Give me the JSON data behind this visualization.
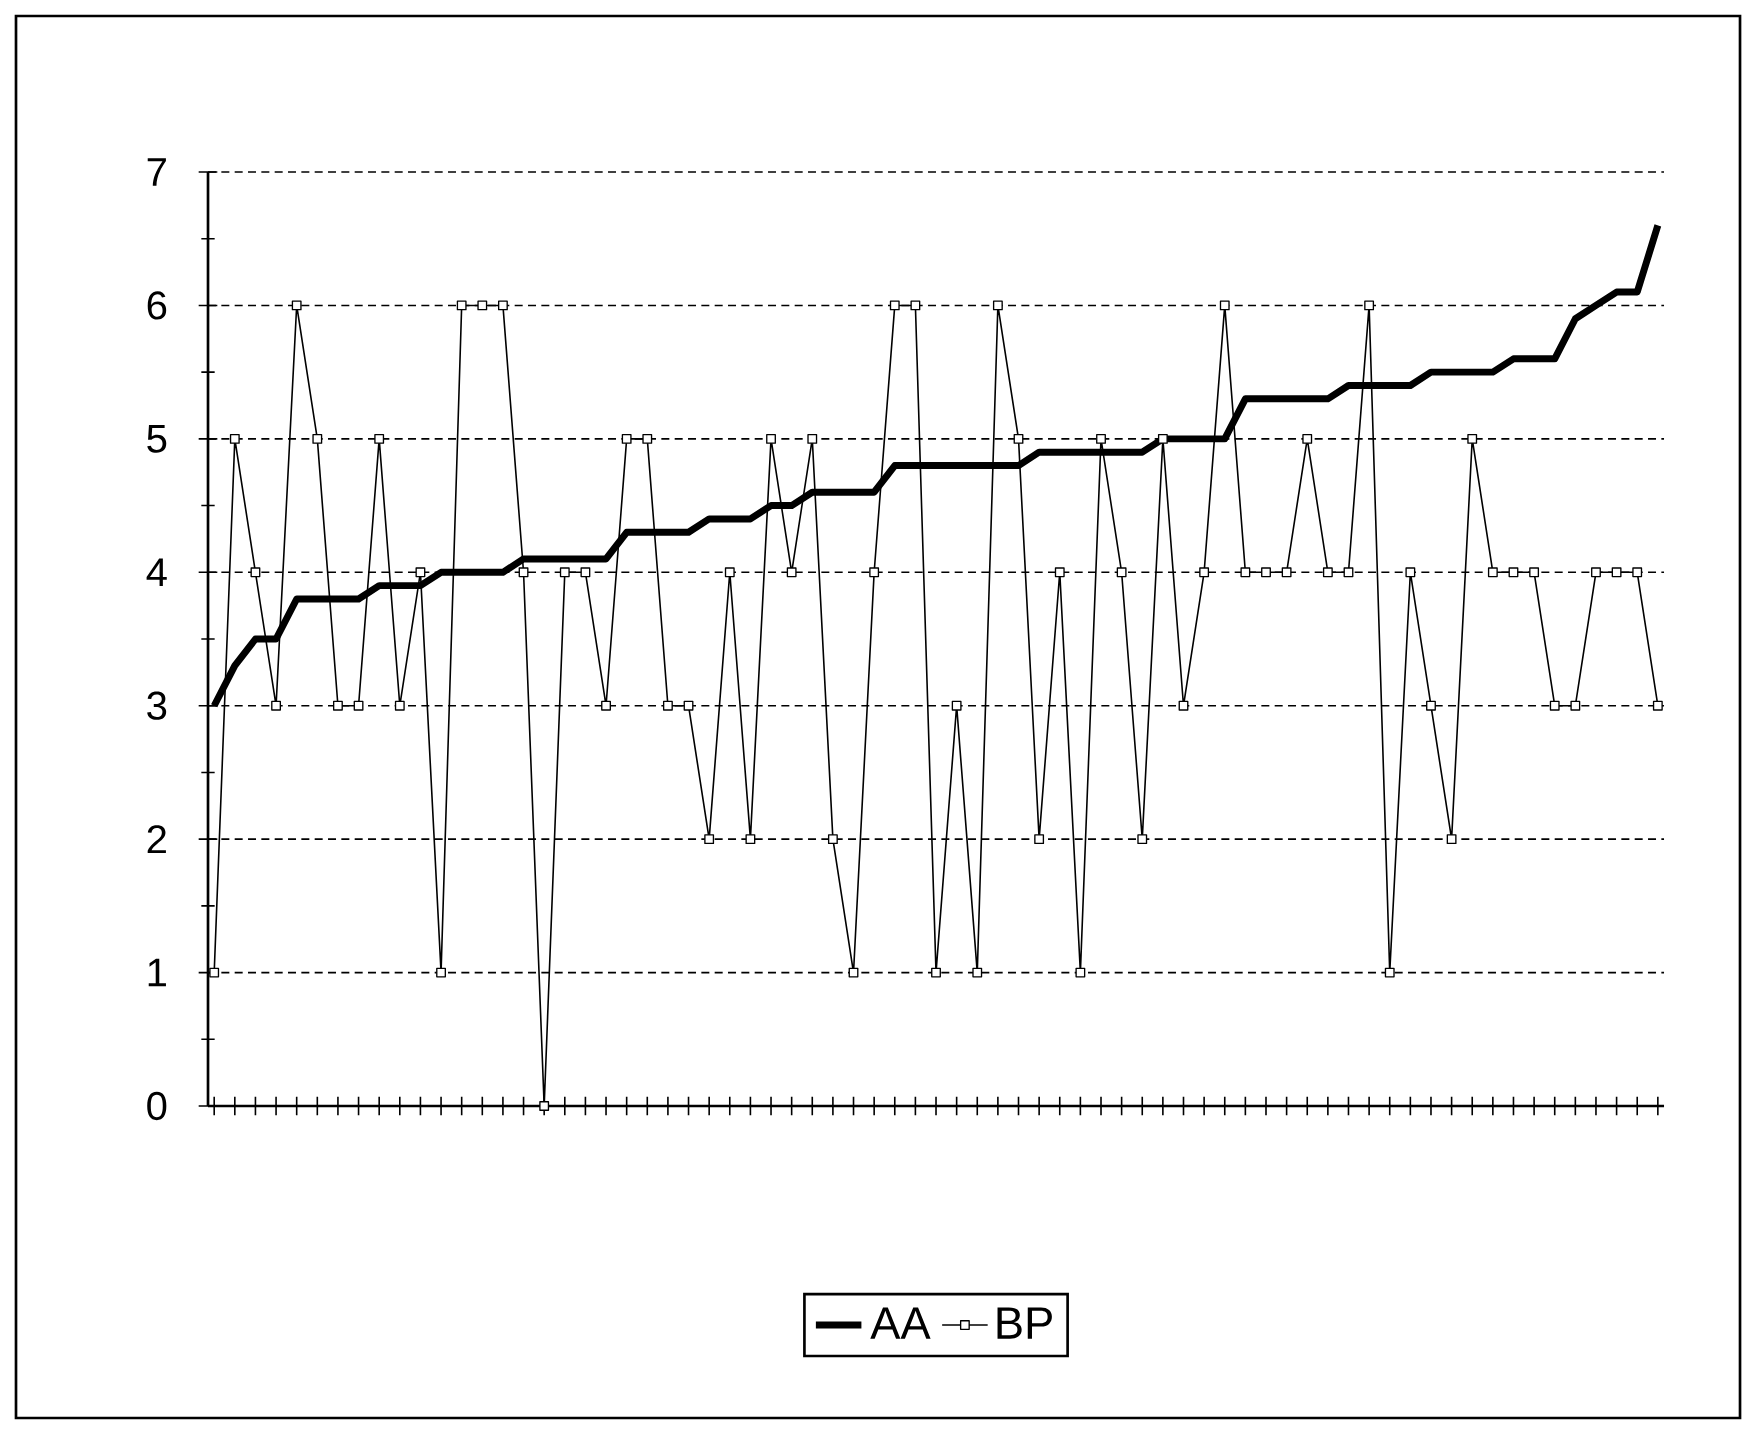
{
  "chart_data": {
    "type": "line",
    "categories": [
      null,
      null,
      null,
      null,
      null,
      null,
      null,
      null,
      null,
      null,
      null,
      null,
      null,
      null,
      null,
      null,
      null,
      null,
      null,
      null,
      null,
      null,
      null,
      null,
      null,
      null,
      null,
      null,
      null,
      null,
      null,
      null,
      null,
      null,
      null,
      null,
      null,
      null,
      null,
      null,
      null,
      null,
      null,
      null,
      null,
      null,
      null,
      null,
      null,
      null,
      null,
      null,
      null,
      null,
      null,
      null,
      null,
      null,
      null,
      null,
      null,
      null,
      null,
      null,
      null,
      null,
      null,
      null,
      null,
      null,
      null
    ],
    "series": [
      {
        "name": "AA",
        "color": "#000000",
        "marker": "none",
        "values": [
          3.0,
          3.3,
          3.5,
          3.5,
          3.8,
          3.8,
          3.8,
          3.8,
          3.9,
          3.9,
          3.9,
          4.0,
          4.0,
          4.0,
          4.0,
          4.1,
          4.1,
          4.1,
          4.1,
          4.1,
          4.3,
          4.3,
          4.3,
          4.3,
          4.4,
          4.4,
          4.4,
          4.5,
          4.5,
          4.6,
          4.6,
          4.6,
          4.6,
          4.8,
          4.8,
          4.8,
          4.8,
          4.8,
          4.8,
          4.8,
          4.9,
          4.9,
          4.9,
          4.9,
          4.9,
          4.9,
          5.0,
          5.0,
          5.0,
          5.0,
          5.3,
          5.3,
          5.3,
          5.3,
          5.3,
          5.4,
          5.4,
          5.4,
          5.4,
          5.5,
          5.5,
          5.5,
          5.5,
          5.6,
          5.6,
          5.6,
          5.9,
          6.0,
          6.1,
          6.1,
          6.6
        ]
      },
      {
        "name": "BP",
        "color": "#000000",
        "marker": "square",
        "values": [
          1,
          5,
          4,
          3,
          6,
          5,
          3,
          3,
          5,
          3,
          4,
          1,
          6,
          6,
          6,
          4,
          0,
          4,
          4,
          3,
          5,
          5,
          3,
          3,
          2,
          4,
          2,
          5,
          4,
          5,
          2,
          1,
          4,
          6,
          6,
          1,
          3,
          1,
          6,
          5,
          2,
          4,
          1,
          5,
          4,
          2,
          5,
          3,
          4,
          6,
          4,
          4,
          4,
          5,
          4,
          4,
          6,
          1,
          4,
          3,
          2,
          5,
          4,
          4,
          4,
          3,
          3,
          4,
          4,
          4,
          3
        ]
      }
    ],
    "ylim": [
      0,
      7
    ],
    "yticks": [
      0,
      1,
      2,
      3,
      4,
      5,
      6,
      7
    ],
    "grid": "y",
    "legend": "bottom",
    "tick_labels": "y",
    "line_style": "solid"
  }
}
